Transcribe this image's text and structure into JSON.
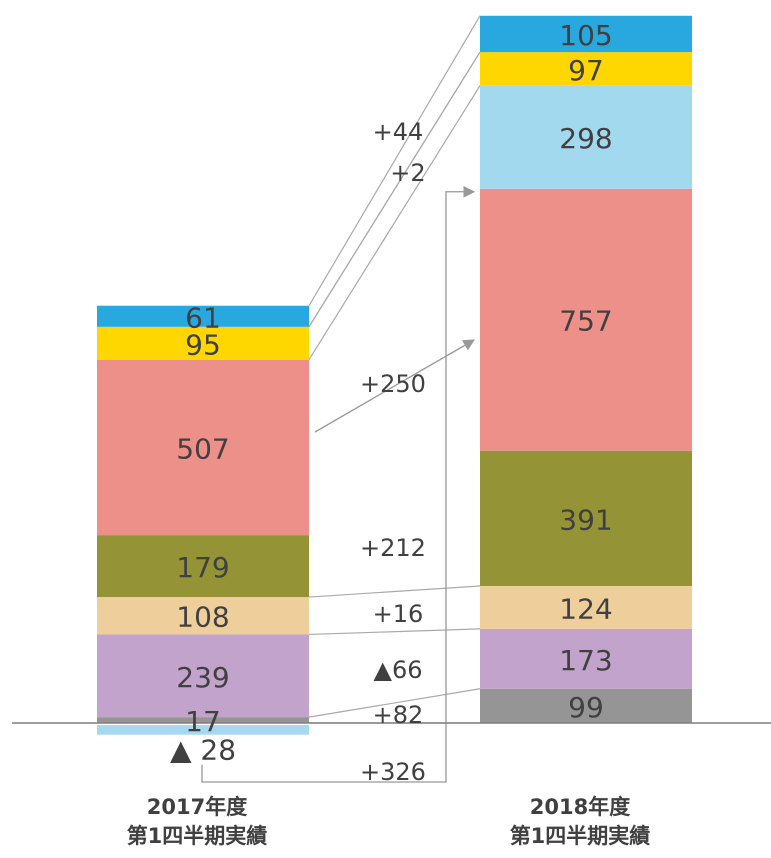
{
  "chart_data": {
    "type": "bar",
    "stacked": true,
    "categories": [
      "2017年度\n第1四半期実績",
      "2018年度\n第1四半期実績"
    ],
    "category_lines": [
      [
        "2017年度",
        "第1四半期実績"
      ],
      [
        "2018年度",
        "第1四半期実績"
      ]
    ],
    "series": [
      {
        "key": "s8",
        "color": "#A6D9EE",
        "values": [
          -28,
          0
        ],
        "labels": [
          "▲ 28",
          ""
        ]
      },
      {
        "key": "s7",
        "color": "#959595",
        "values": [
          17,
          99
        ],
        "labels": [
          "17",
          "99"
        ]
      },
      {
        "key": "s6",
        "color": "#C2A3CC",
        "values": [
          239,
          173
        ],
        "labels": [
          "239",
          "173"
        ]
      },
      {
        "key": "s5",
        "color": "#EECF9C",
        "values": [
          108,
          124
        ],
        "labels": [
          "108",
          "124"
        ]
      },
      {
        "key": "s4",
        "color": "#949436",
        "values": [
          179,
          391
        ],
        "labels": [
          "179",
          "391"
        ]
      },
      {
        "key": "s3",
        "color": "#EE908A",
        "values": [
          507,
          757
        ],
        "labels": [
          "507",
          "757"
        ]
      },
      {
        "key": "s2",
        "color": "#A3D9EE",
        "values": [
          0,
          298
        ],
        "labels": [
          "",
          "298"
        ]
      },
      {
        "key": "s1",
        "color": "#FFD700",
        "values": [
          95,
          97
        ],
        "labels": [
          "95",
          "97"
        ]
      },
      {
        "key": "s0",
        "color": "#29A8E0",
        "values": [
          61,
          105
        ],
        "labels": [
          "61",
          "105"
        ]
      }
    ],
    "changes": [
      {
        "text": "+44",
        "from": "s0",
        "to": "s0"
      },
      {
        "text": "+2",
        "from": "s1",
        "to": "s1"
      },
      {
        "text": "+250",
        "from": "s3",
        "to": "s3"
      },
      {
        "text": "+212",
        "from": "s4",
        "to": "s4"
      },
      {
        "text": "+16",
        "from": "s5",
        "to": "s5"
      },
      {
        "text": "▲66",
        "from": "s6",
        "to": "s6"
      },
      {
        "text": "+82",
        "from": "s7",
        "to": "s7"
      },
      {
        "text": "+326",
        "from": "s8",
        "to": "s2"
      }
    ],
    "baseline": 0,
    "grid": false,
    "legend": "none",
    "title": "",
    "xlabel": "",
    "ylabel": ""
  }
}
